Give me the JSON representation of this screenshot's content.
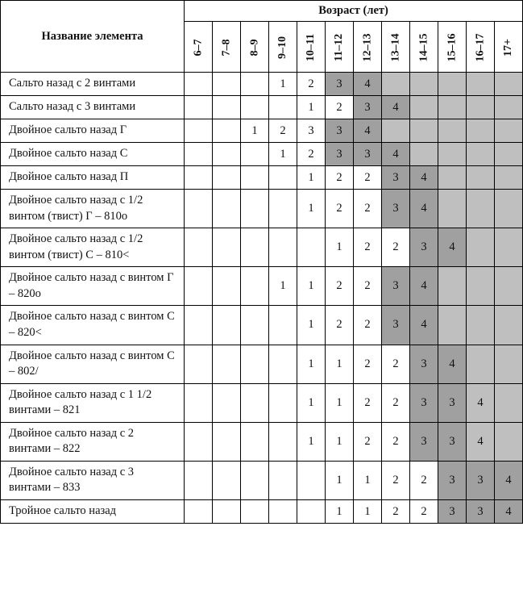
{
  "header": {
    "row_label": "Название элемента",
    "age_group": "Возраст (лет)",
    "ages": [
      "6–7",
      "7–8",
      "8–9",
      "9–10",
      "10–11",
      "11–12",
      "12–13",
      "13–14",
      "14–15",
      "15–16",
      "16–17",
      "17+"
    ]
  },
  "styling": {
    "shade_colors": {
      "0": "#ffffff",
      "1": "#bfbfbf",
      "2": "#a0a0a0"
    },
    "border_color": "#000000",
    "text_color": "#111111",
    "header_fontsize": 14.5,
    "body_fontsize": 14.5,
    "rotated_label_fontsize": 14
  },
  "rows": [
    {
      "name": "Сальто назад с 2 винтами",
      "cells": [
        {
          "v": "",
          "s": 0
        },
        {
          "v": "",
          "s": 0
        },
        {
          "v": "",
          "s": 0
        },
        {
          "v": "1",
          "s": 0
        },
        {
          "v": "2",
          "s": 0
        },
        {
          "v": "3",
          "s": 2
        },
        {
          "v": "4",
          "s": 2
        },
        {
          "v": "",
          "s": 1
        },
        {
          "v": "",
          "s": 1
        },
        {
          "v": "",
          "s": 1
        },
        {
          "v": "",
          "s": 1
        },
        {
          "v": "",
          "s": 1
        }
      ]
    },
    {
      "name": "Сальто назад с 3 винтами",
      "cells": [
        {
          "v": "",
          "s": 0
        },
        {
          "v": "",
          "s": 0
        },
        {
          "v": "",
          "s": 0
        },
        {
          "v": "",
          "s": 0
        },
        {
          "v": "1",
          "s": 0
        },
        {
          "v": "2",
          "s": 0
        },
        {
          "v": "3",
          "s": 2
        },
        {
          "v": "4",
          "s": 2
        },
        {
          "v": "",
          "s": 1
        },
        {
          "v": "",
          "s": 1
        },
        {
          "v": "",
          "s": 1
        },
        {
          "v": "",
          "s": 1
        }
      ]
    },
    {
      "name": "Двойное сальто назад Г",
      "cells": [
        {
          "v": "",
          "s": 0
        },
        {
          "v": "",
          "s": 0
        },
        {
          "v": "1",
          "s": 0
        },
        {
          "v": "2",
          "s": 0
        },
        {
          "v": "3",
          "s": 0
        },
        {
          "v": "3",
          "s": 2
        },
        {
          "v": "4",
          "s": 2
        },
        {
          "v": "",
          "s": 1
        },
        {
          "v": "",
          "s": 1
        },
        {
          "v": "",
          "s": 1
        },
        {
          "v": "",
          "s": 1
        },
        {
          "v": "",
          "s": 1
        }
      ]
    },
    {
      "name": "Двойное сальто назад С",
      "cells": [
        {
          "v": "",
          "s": 0
        },
        {
          "v": "",
          "s": 0
        },
        {
          "v": "",
          "s": 0
        },
        {
          "v": "1",
          "s": 0
        },
        {
          "v": "2",
          "s": 0
        },
        {
          "v": "3",
          "s": 2
        },
        {
          "v": "3",
          "s": 2
        },
        {
          "v": "4",
          "s": 2
        },
        {
          "v": "",
          "s": 1
        },
        {
          "v": "",
          "s": 1
        },
        {
          "v": "",
          "s": 1
        },
        {
          "v": "",
          "s": 1
        }
      ]
    },
    {
      "name": "Двойное сальто назад П",
      "cells": [
        {
          "v": "",
          "s": 0
        },
        {
          "v": "",
          "s": 0
        },
        {
          "v": "",
          "s": 0
        },
        {
          "v": "",
          "s": 0
        },
        {
          "v": "1",
          "s": 0
        },
        {
          "v": "2",
          "s": 0
        },
        {
          "v": "2",
          "s": 0
        },
        {
          "v": "3",
          "s": 2
        },
        {
          "v": "4",
          "s": 2
        },
        {
          "v": "",
          "s": 1
        },
        {
          "v": "",
          "s": 1
        },
        {
          "v": "",
          "s": 1
        }
      ]
    },
    {
      "name": "Двойное сальто назад с 1/2 винтом (твист) Г – 810о",
      "cells": [
        {
          "v": "",
          "s": 0
        },
        {
          "v": "",
          "s": 0
        },
        {
          "v": "",
          "s": 0
        },
        {
          "v": "",
          "s": 0
        },
        {
          "v": "1",
          "s": 0
        },
        {
          "v": "2",
          "s": 0
        },
        {
          "v": "2",
          "s": 0
        },
        {
          "v": "3",
          "s": 2
        },
        {
          "v": "4",
          "s": 2
        },
        {
          "v": "",
          "s": 1
        },
        {
          "v": "",
          "s": 1
        },
        {
          "v": "",
          "s": 1
        }
      ]
    },
    {
      "name": "Двойное сальто назад с 1/2 винтом (твист) С – 810<",
      "cells": [
        {
          "v": "",
          "s": 0
        },
        {
          "v": "",
          "s": 0
        },
        {
          "v": "",
          "s": 0
        },
        {
          "v": "",
          "s": 0
        },
        {
          "v": "",
          "s": 0
        },
        {
          "v": "1",
          "s": 0
        },
        {
          "v": "2",
          "s": 0
        },
        {
          "v": "2",
          "s": 0
        },
        {
          "v": "3",
          "s": 2
        },
        {
          "v": "4",
          "s": 2
        },
        {
          "v": "",
          "s": 1
        },
        {
          "v": "",
          "s": 1
        }
      ]
    },
    {
      "name": "Двойное сальто назад с винтом Г – 820о",
      "cells": [
        {
          "v": "",
          "s": 0
        },
        {
          "v": "",
          "s": 0
        },
        {
          "v": "",
          "s": 0
        },
        {
          "v": "1",
          "s": 0
        },
        {
          "v": "1",
          "s": 0
        },
        {
          "v": "2",
          "s": 0
        },
        {
          "v": "2",
          "s": 0
        },
        {
          "v": "3",
          "s": 2
        },
        {
          "v": "4",
          "s": 2
        },
        {
          "v": "",
          "s": 1
        },
        {
          "v": "",
          "s": 1
        },
        {
          "v": "",
          "s": 1
        }
      ]
    },
    {
      "name": "Двойное сальто назад с винтом С – 820<",
      "cells": [
        {
          "v": "",
          "s": 0
        },
        {
          "v": "",
          "s": 0
        },
        {
          "v": "",
          "s": 0
        },
        {
          "v": "",
          "s": 0
        },
        {
          "v": "1",
          "s": 0
        },
        {
          "v": "2",
          "s": 0
        },
        {
          "v": "2",
          "s": 0
        },
        {
          "v": "3",
          "s": 2
        },
        {
          "v": "4",
          "s": 2
        },
        {
          "v": "",
          "s": 1
        },
        {
          "v": "",
          "s": 1
        },
        {
          "v": "",
          "s": 1
        }
      ]
    },
    {
      "name": "Двойное сальто назад с винтом С – 802/",
      "cells": [
        {
          "v": "",
          "s": 0
        },
        {
          "v": "",
          "s": 0
        },
        {
          "v": "",
          "s": 0
        },
        {
          "v": "",
          "s": 0
        },
        {
          "v": "1",
          "s": 0
        },
        {
          "v": "1",
          "s": 0
        },
        {
          "v": "2",
          "s": 0
        },
        {
          "v": "2",
          "s": 0
        },
        {
          "v": "3",
          "s": 2
        },
        {
          "v": "4",
          "s": 2
        },
        {
          "v": "",
          "s": 1
        },
        {
          "v": "",
          "s": 1
        }
      ]
    },
    {
      "name": "Двойное сальто назад с 1 1/2 винтами – 821",
      "cells": [
        {
          "v": "",
          "s": 0
        },
        {
          "v": "",
          "s": 0
        },
        {
          "v": "",
          "s": 0
        },
        {
          "v": "",
          "s": 0
        },
        {
          "v": "1",
          "s": 0
        },
        {
          "v": "1",
          "s": 0
        },
        {
          "v": "2",
          "s": 0
        },
        {
          "v": "2",
          "s": 0
        },
        {
          "v": "3",
          "s": 2
        },
        {
          "v": "3",
          "s": 2
        },
        {
          "v": "4",
          "s": 1
        },
        {
          "v": "",
          "s": 1
        }
      ]
    },
    {
      "name": "Двойное сальто назад с 2 винтами – 822",
      "cells": [
        {
          "v": "",
          "s": 0
        },
        {
          "v": "",
          "s": 0
        },
        {
          "v": "",
          "s": 0
        },
        {
          "v": "",
          "s": 0
        },
        {
          "v": "1",
          "s": 0
        },
        {
          "v": "1",
          "s": 0
        },
        {
          "v": "2",
          "s": 0
        },
        {
          "v": "2",
          "s": 0
        },
        {
          "v": "3",
          "s": 2
        },
        {
          "v": "3",
          "s": 2
        },
        {
          "v": "4",
          "s": 1
        },
        {
          "v": "",
          "s": 1
        }
      ]
    },
    {
      "name": "Двойное сальто назад с 3 винтами – 833",
      "cells": [
        {
          "v": "",
          "s": 0
        },
        {
          "v": "",
          "s": 0
        },
        {
          "v": "",
          "s": 0
        },
        {
          "v": "",
          "s": 0
        },
        {
          "v": "",
          "s": 0
        },
        {
          "v": "1",
          "s": 0
        },
        {
          "v": "1",
          "s": 0
        },
        {
          "v": "2",
          "s": 0
        },
        {
          "v": "2",
          "s": 0
        },
        {
          "v": "3",
          "s": 2
        },
        {
          "v": "3",
          "s": 2
        },
        {
          "v": "4",
          "s": 2
        }
      ]
    },
    {
      "name": "Тройное сальто назад",
      "cells": [
        {
          "v": "",
          "s": 0
        },
        {
          "v": "",
          "s": 0
        },
        {
          "v": "",
          "s": 0
        },
        {
          "v": "",
          "s": 0
        },
        {
          "v": "",
          "s": 0
        },
        {
          "v": "1",
          "s": 0
        },
        {
          "v": "1",
          "s": 0
        },
        {
          "v": "2",
          "s": 0
        },
        {
          "v": "2",
          "s": 0
        },
        {
          "v": "3",
          "s": 2
        },
        {
          "v": "3",
          "s": 2
        },
        {
          "v": "4",
          "s": 2
        }
      ]
    }
  ]
}
